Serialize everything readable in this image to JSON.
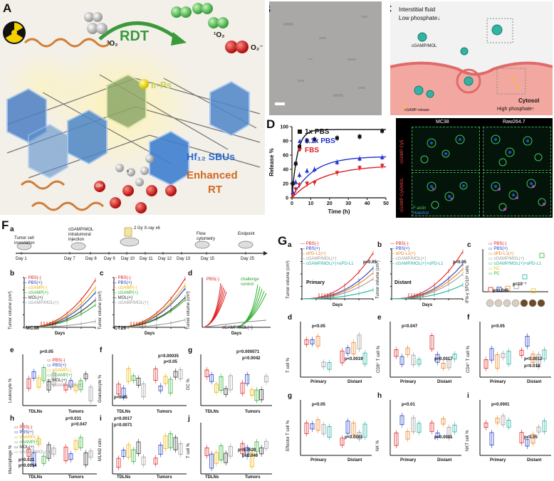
{
  "panelA": {
    "label": "A",
    "rdt": "RDT",
    "singlet_o2": "¹O₂",
    "superoxide": "O₂⁻",
    "triplet_o2": "³O₂",
    "ligand": "Ir-Ps",
    "sbus": "Hf₁₂ SBUs",
    "enhanced": "Enhanced",
    "rt": "RT",
    "oh": "·OH",
    "electron": "e⁻"
  },
  "panelB": {
    "label": "B"
  },
  "panelC": {
    "label": "C",
    "interstitial": "Interstitial fluid",
    "low_phosphate": "Low phosphate↓",
    "cytosol": "Cytosol",
    "high_phosphate": "High phosphate↑",
    "cgamp_mol": "cGAMP/MOL",
    "cgamp_release": "cGAMP release"
  },
  "panelD": {
    "label": "D",
    "chart_data": {
      "type": "scatter",
      "title": "",
      "xlabel": "Time (h)",
      "ylabel": "Release %",
      "xlim": [
        0,
        50
      ],
      "ylim": [
        0,
        100
      ],
      "x_ticks": [
        "0",
        "10",
        "20",
        "30",
        "40",
        "50"
      ],
      "y_ticks": [
        "0",
        "20",
        "40",
        "60",
        "80",
        "100"
      ],
      "legend_position": "top-left",
      "series": [
        {
          "name": "1x PBS",
          "color": "#111111",
          "x": [
            0.5,
            2,
            4,
            8,
            12,
            24,
            36,
            48
          ],
          "y": [
            20,
            48,
            72,
            80,
            82,
            84,
            86,
            94
          ]
        },
        {
          "name": "0.1x PBS",
          "color": "#2233cc",
          "x": [
            0.5,
            2,
            4,
            8,
            12,
            24,
            36,
            48
          ],
          "y": [
            8,
            22,
            32,
            38,
            40,
            50,
            55,
            57
          ]
        },
        {
          "name": "FBS",
          "color": "#dd2222",
          "x": [
            0.5,
            2,
            4,
            8,
            12,
            24,
            36,
            48
          ],
          "y": [
            3,
            12,
            18,
            20,
            21,
            35,
            42,
            45
          ]
        }
      ]
    }
  },
  "panelE": {
    "label": "E",
    "col1": "MC38",
    "col2": "Raw264.7",
    "row1": "cGAMP-Cy5",
    "row2": "cGAMP-Cy5/MOL",
    "factin": "F-actin",
    "hoechst": "Hoechst"
  },
  "panelF": {
    "label": "F",
    "timeline": {
      "label": "a",
      "tumor_inoculation": "Tumor cell inoculation",
      "injection": "cGAMP/MOL intratumoral injection",
      "xray": "2 Gy X-ray x6",
      "flow": "Flow cytometry",
      "endpoint": "Endpoint",
      "days": [
        "Day 1",
        "Day 7",
        "Day 8",
        "Day 9",
        "Day 10",
        "Day 11",
        "Day 12",
        "Day 13",
        "Day 15",
        "Day 25"
      ]
    },
    "b": {
      "label": "b",
      "model": "MC38",
      "ylabel": "Tumor volume (cm³)",
      "xlabel": "Days",
      "groups": [
        "PBS(-)",
        "PBS(+)",
        "cGAMP(-)",
        "cGAMP(+)",
        "MOL(+)",
        "cGAMP/MOL(+)"
      ]
    },
    "c": {
      "label": "c",
      "model": "CT26",
      "ylabel": "Tumor volume (cm³)",
      "xlabel": "Days",
      "groups": [
        "PBS(-)",
        "PBS(+)",
        "cGAMP(-)",
        "cGAMP(+)",
        "MOL(+)",
        "cGAMP/MOL(+)"
      ]
    },
    "d": {
      "label": "d",
      "ylabel": "Tumor volume (cm³)",
      "xlabel": "Days",
      "pbs": "PBS(-)",
      "challenge": "challenge control",
      "cgamp": "cGAMP/MOL(+)"
    },
    "e": {
      "label": "e",
      "ylabel": "Leukocyte %",
      "x1": "TDLNs",
      "x2": "Tumors",
      "p": "p<0.05",
      "groups": [
        "PBS(-)",
        "PBS(+)",
        "cGAMP(-)",
        "cGAMP(+)",
        "MOL(+)",
        "cGAMP/MOL(+)"
      ]
    },
    "f": {
      "label": "f",
      "ylabel": "Granulocyte %",
      "x1": "TDLNs",
      "x2": "Tumors",
      "p1": "p<0.05",
      "p2": "p=0.00035",
      "p3": "p<0.05"
    },
    "g": {
      "label": "g",
      "ylabel": "DC %",
      "x1": "TDLNs",
      "x2": "Tumors",
      "p1": "p=0.000071",
      "p2": "p=0.0042"
    },
    "h": {
      "label": "h",
      "ylabel": "Macrophage %",
      "x1": "TDLNs",
      "x2": "Tumors",
      "p1": "p=0.031",
      "p2": "p=0.047",
      "p3": "p=0.021",
      "p4": "p=0.0014",
      "groups": [
        "PBS(-)",
        "PBS(+)",
        "cGAMP(-)",
        "cGAMP(+)",
        "MOL(+)",
        "cGAMP/MOL(+)"
      ]
    },
    "i": {
      "label": "i",
      "ylabel": "M1/M2 ratio",
      "x1": "TDLNs",
      "x2": "Tumors",
      "p1": "p=0.0017",
      "p2": "p=0.0071"
    },
    "j": {
      "label": "j",
      "ylabel": "T cell %",
      "x1": "TDLNs",
      "x2": "Tumors",
      "p1": "p=0.0020",
      "p2": "p=0.046"
    }
  },
  "panelG": {
    "label": "G",
    "groups": [
      "PBS(-)",
      "PBS(+)",
      "αPD-L1(+)",
      "cGAMP/MOL(+)",
      "cGAMP/MOL(+)+αPD-L1"
    ],
    "a": {
      "label": "a",
      "site": "Primary",
      "ylabel": "Tumor volume (cm³)",
      "xlabel": "Days",
      "p": "p<0.05"
    },
    "b": {
      "label": "b",
      "site": "Distant",
      "ylabel": "Tumor volume (cm³)",
      "xlabel": "Days",
      "p": "p<0.05"
    },
    "c": {
      "label": "c",
      "ylabel": "IFN-γ SFC/10⁵ cells",
      "p1": "p=0.045",
      "p2": "p=10⁻⁷",
      "groups": [
        "PBS(-)",
        "PBS(+)",
        "αPD-L1(+)",
        "cGAMP/MOL(+)",
        "cGAMP/MOL(+)+αPD-L1",
        "NC",
        "PC"
      ]
    },
    "d": {
      "label": "d",
      "ylabel": "T cell %",
      "x1": "Primary",
      "x2": "Distant",
      "p1": "p<0.05",
      "p2": "p<0.0019"
    },
    "e": {
      "label": "e",
      "ylabel": "CD8⁺ T cell %",
      "x1": "Primary",
      "x2": "Distant",
      "p1": "p=0.047",
      "p2": "p<0.0017"
    },
    "f": {
      "label": "f",
      "ylabel": "CD4⁺ T cell %",
      "x1": "Primary",
      "x2": "Distant",
      "p1": "p<0.05",
      "p2": "p<0.0012",
      "p3": "p=0.018"
    },
    "g": {
      "label": "g",
      "ylabel": "Effector T cell %",
      "x1": "Primary",
      "x2": "Distant",
      "p1": "p<0.05",
      "p2": "p<0.0001"
    },
    "h": {
      "label": "h",
      "ylabel": "NK %",
      "x1": "Primary",
      "x2": "Distant",
      "p1": "p<0.01",
      "p2": "p<0.0001"
    },
    "i": {
      "label": "i",
      "ylabel": "NKT cell %",
      "x1": "Primary",
      "x2": "Distant",
      "p1": "p<0.0001",
      "p2": "p<0.05"
    }
  },
  "colors": {
    "pbs_minus": "#e02020",
    "pbs_plus": "#2040c0",
    "cgamp_minus": "#f0b000",
    "cgamp_plus": "#30b030",
    "mol_plus": "#303030",
    "cgamp_mol_plus": "#9a9a9a",
    "apdl1": "#f08020",
    "combo": "#20b0a0"
  }
}
